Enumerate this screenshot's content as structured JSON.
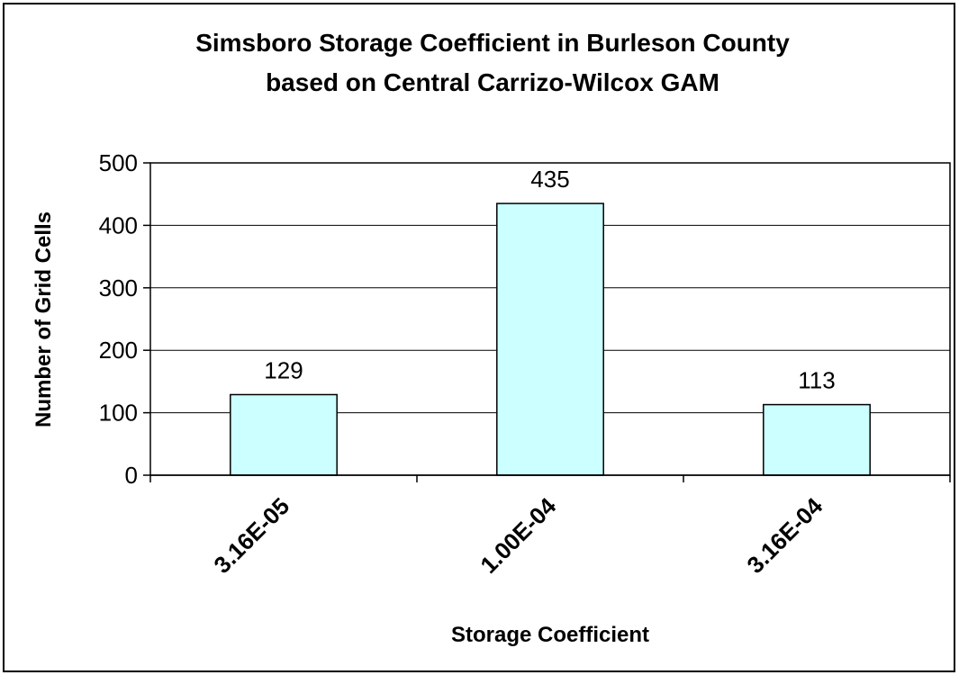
{
  "chart_data": {
    "type": "bar",
    "title": [
      "Simsboro Storage Coefficient in Burleson County",
      "based on Central Carrizo-Wilcox GAM"
    ],
    "xlabel": "Storage Coefficient",
    "ylabel": "Number of Grid Cells",
    "categories": [
      "3.16E-05",
      "1.00E-04",
      "3.16E-04"
    ],
    "values": [
      129,
      435,
      113
    ],
    "ylim": [
      0,
      500
    ],
    "yticks": [
      0,
      100,
      200,
      300,
      400,
      500
    ],
    "grid": true,
    "legend": "none",
    "colors": {
      "bar_fill": "#ccffff",
      "bar_stroke": "#000000",
      "gridline": "#000000",
      "background": "#ffffff"
    }
  }
}
